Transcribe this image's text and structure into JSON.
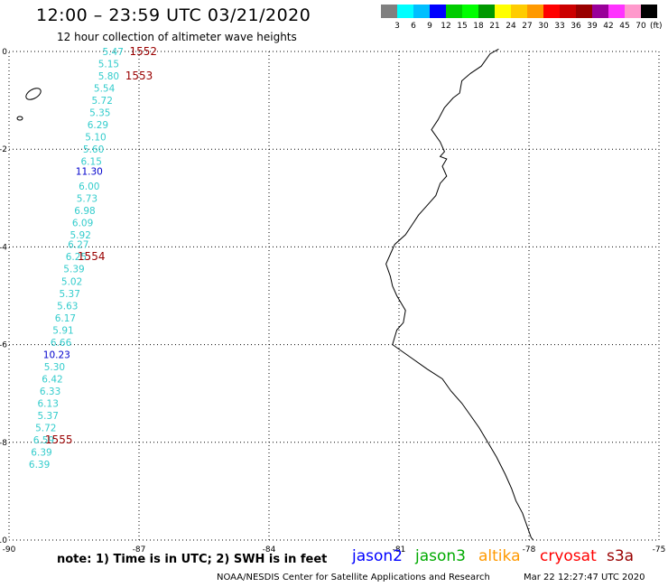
{
  "title": "12:00 – 23:59 UTC 03/21/2020",
  "subtitle": "12 hour collection of altimeter wave heights",
  "colorbar": {
    "unit": "(ft)",
    "colors": [
      "#808080",
      "#00ffff",
      "#00bfff",
      "#0000ff",
      "#00cc00",
      "#00ff00",
      "#009900",
      "#ffff00",
      "#ffcc00",
      "#ff9900",
      "#ff0000",
      "#cc0000",
      "#990000",
      "#990099",
      "#ff33ff",
      "#ff99cc",
      "#000000"
    ],
    "labels": [
      "3",
      "6",
      "9",
      "12",
      "15",
      "18",
      "21",
      "24",
      "27",
      "30",
      "33",
      "36",
      "39",
      "42",
      "45",
      "70"
    ]
  },
  "axes": {
    "lon_ticks": [
      "-90",
      "-87",
      "-84",
      "-81",
      "-78",
      "-75"
    ],
    "lat_ticks": [
      "0",
      "-2",
      "-4",
      "-6",
      "-8",
      "-10"
    ],
    "lon_range": [
      -90,
      -75
    ],
    "lat_range": [
      -10,
      0
    ]
  },
  "wave_heights": [
    {
      "lat": 0.0,
      "lon": -87.6,
      "value": "5.47",
      "color": "#33cccc"
    },
    {
      "lat": -0.25,
      "lon": -87.7,
      "value": "5.15",
      "color": "#33cccc"
    },
    {
      "lat": -0.5,
      "lon": -87.7,
      "value": "5.80",
      "color": "#33cccc"
    },
    {
      "lat": -0.75,
      "lon": -87.8,
      "value": "5.54",
      "color": "#33cccc"
    },
    {
      "lat": -1.0,
      "lon": -87.85,
      "value": "5.72",
      "color": "#33cccc"
    },
    {
      "lat": -1.25,
      "lon": -87.9,
      "value": "5.35",
      "color": "#33cccc"
    },
    {
      "lat": -1.5,
      "lon": -87.95,
      "value": "6.29",
      "color": "#33cccc"
    },
    {
      "lat": -1.75,
      "lon": -88.0,
      "value": "5.10",
      "color": "#33cccc"
    },
    {
      "lat": -2.0,
      "lon": -88.05,
      "value": "5.60",
      "color": "#33cccc"
    },
    {
      "lat": -2.25,
      "lon": -88.1,
      "value": "6.15",
      "color": "#33cccc"
    },
    {
      "lat": -2.45,
      "lon": -88.15,
      "value": "11.30",
      "color": "#0000cc"
    },
    {
      "lat": -2.75,
      "lon": -88.15,
      "value": "6.00",
      "color": "#33cccc"
    },
    {
      "lat": -3.0,
      "lon": -88.2,
      "value": "5.73",
      "color": "#33cccc"
    },
    {
      "lat": -3.25,
      "lon": -88.25,
      "value": "6.98",
      "color": "#33cccc"
    },
    {
      "lat": -3.5,
      "lon": -88.3,
      "value": "6.09",
      "color": "#33cccc"
    },
    {
      "lat": -3.75,
      "lon": -88.35,
      "value": "5.92",
      "color": "#33cccc"
    },
    {
      "lat": -3.95,
      "lon": -88.4,
      "value": "6.27",
      "color": "#33cccc"
    },
    {
      "lat": -4.2,
      "lon": -88.45,
      "value": "6.25",
      "color": "#33cccc"
    },
    {
      "lat": -4.45,
      "lon": -88.5,
      "value": "5.39",
      "color": "#33cccc"
    },
    {
      "lat": -4.7,
      "lon": -88.55,
      "value": "5.02",
      "color": "#33cccc"
    },
    {
      "lat": -4.95,
      "lon": -88.6,
      "value": "5.37",
      "color": "#33cccc"
    },
    {
      "lat": -5.2,
      "lon": -88.65,
      "value": "5.63",
      "color": "#33cccc"
    },
    {
      "lat": -5.45,
      "lon": -88.7,
      "value": "6.17",
      "color": "#33cccc"
    },
    {
      "lat": -5.7,
      "lon": -88.75,
      "value": "5.91",
      "color": "#33cccc"
    },
    {
      "lat": -5.95,
      "lon": -88.8,
      "value": "6.66",
      "color": "#33cccc"
    },
    {
      "lat": -6.2,
      "lon": -88.9,
      "value": "10.23",
      "color": "#0000cc"
    },
    {
      "lat": -6.45,
      "lon": -88.95,
      "value": "5.30",
      "color": "#33cccc"
    },
    {
      "lat": -6.7,
      "lon": -89.0,
      "value": "6.42",
      "color": "#33cccc"
    },
    {
      "lat": -6.95,
      "lon": -89.05,
      "value": "6.33",
      "color": "#33cccc"
    },
    {
      "lat": -7.2,
      "lon": -89.1,
      "value": "6.13",
      "color": "#33cccc"
    },
    {
      "lat": -7.45,
      "lon": -89.1,
      "value": "5.37",
      "color": "#33cccc"
    },
    {
      "lat": -7.7,
      "lon": -89.15,
      "value": "5.72",
      "color": "#33cccc"
    },
    {
      "lat": -7.95,
      "lon": -89.2,
      "value": "6.59",
      "color": "#33cccc"
    },
    {
      "lat": -8.2,
      "lon": -89.25,
      "value": "6.39",
      "color": "#33cccc"
    },
    {
      "lat": -8.45,
      "lon": -89.3,
      "value": "6.39",
      "color": "#33cccc"
    }
  ],
  "pass_times": [
    {
      "lat": 0.0,
      "lon": -86.9,
      "value": "1552",
      "color": "#990000"
    },
    {
      "lat": -0.5,
      "lon": -87.0,
      "value": "1553",
      "color": "#990000"
    },
    {
      "lat": -4.2,
      "lon": -88.1,
      "value": "1554",
      "color": "#990000"
    },
    {
      "lat": -7.95,
      "lon": -88.85,
      "value": "1555",
      "color": "#990000"
    }
  ],
  "note": "note:  1) Time is in UTC;  2) SWH is in feet",
  "satellites": [
    {
      "name": "jason2",
      "color": "#0000ff"
    },
    {
      "name": "jason3",
      "color": "#00aa00"
    },
    {
      "name": "altika",
      "color": "#ff9900"
    },
    {
      "name": "cryosat",
      "color": "#ff0000"
    },
    {
      "name": "s3a",
      "color": "#990000"
    }
  ],
  "footer": "NOAA/NESDIS Center for Satellite Applications and Research",
  "timestamp": "Mar 22 12:27:47 UTC 2020"
}
